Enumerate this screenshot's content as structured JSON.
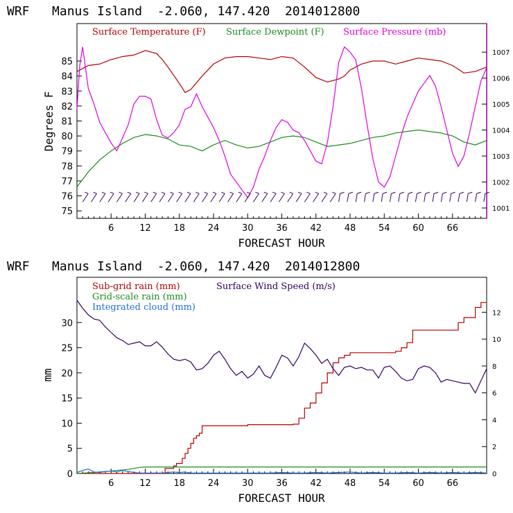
{
  "chart_data": [
    {
      "type": "line",
      "title": "WRF   Manus Island  -2.060, 147.420  2014012800",
      "xlabel": "FORECAST HOUR",
      "ylabel": "Degrees F",
      "xlim": [
        0,
        72
      ],
      "ylim": [
        74.5,
        87.5
      ],
      "y2lim": [
        1000.6,
        1008.1
      ],
      "xticks": [
        "6",
        "12",
        "18",
        "24",
        "30",
        "36",
        "42",
        "48",
        "54",
        "60",
        "66"
      ],
      "yticks": [
        "75",
        "76",
        "77",
        "78",
        "79",
        "80",
        "81",
        "82",
        "83",
        "84",
        "85"
      ],
      "y2ticks": [
        "1001",
        "1002",
        "1003",
        "1004",
        "1005",
        "1006",
        "1007"
      ],
      "legend_placement": "top",
      "wind_barbs": true,
      "series": [
        {
          "name": "Surface Temperature (F)",
          "color": "#b30000",
          "axis": "left",
          "x": [
            0,
            2,
            4,
            6,
            8,
            10,
            12,
            14,
            15,
            16,
            18,
            19,
            20,
            22,
            24,
            26,
            28,
            30,
            32,
            34,
            36,
            38,
            40,
            42,
            44,
            46,
            47,
            48,
            50,
            52,
            54,
            56,
            58,
            60,
            62,
            64,
            66,
            68,
            70,
            72
          ],
          "y": [
            84.3,
            84.7,
            84.8,
            85.1,
            85.3,
            85.4,
            85.7,
            85.5,
            85.1,
            84.6,
            83.5,
            82.9,
            83.1,
            84.0,
            84.8,
            85.2,
            85.3,
            85.3,
            85.2,
            85.1,
            85.3,
            85.2,
            84.6,
            83.9,
            83.6,
            83.8,
            84.0,
            84.4,
            84.8,
            85.0,
            85.0,
            84.8,
            85.0,
            85.2,
            85.1,
            85.0,
            84.7,
            84.2,
            84.3,
            84.6
          ]
        },
        {
          "name": "Surface Dewpoint (F)",
          "color": "#1a8a1a",
          "axis": "left",
          "x": [
            0,
            2,
            4,
            6,
            8,
            10,
            12,
            14,
            16,
            18,
            20,
            22,
            24,
            26,
            28,
            30,
            32,
            34,
            36,
            38,
            40,
            42,
            44,
            46,
            48,
            50,
            52,
            54,
            56,
            58,
            60,
            62,
            64,
            66,
            68,
            70,
            72
          ],
          "y": [
            76.6,
            77.6,
            78.4,
            79.0,
            79.5,
            79.9,
            80.1,
            80.0,
            79.8,
            79.4,
            79.3,
            79.0,
            79.4,
            79.7,
            79.4,
            79.2,
            79.3,
            79.6,
            79.9,
            80.0,
            79.9,
            79.6,
            79.3,
            79.4,
            79.5,
            79.7,
            79.9,
            80.0,
            80.2,
            80.3,
            80.4,
            80.3,
            80.2,
            80.0,
            79.6,
            79.4,
            79.7
          ]
        },
        {
          "name": "Surface Pressure (mb)",
          "color": "#e000e0",
          "axis": "right",
          "x": [
            0,
            0.5,
            1,
            1.5,
            2,
            3,
            4,
            5,
            6,
            7,
            8,
            9,
            10,
            11,
            12,
            13,
            14,
            15,
            16,
            17,
            18,
            19,
            20,
            21,
            22,
            23,
            24,
            25,
            26,
            27,
            28,
            29,
            30,
            31,
            32,
            33,
            34,
            35,
            36,
            37,
            38,
            39,
            40,
            41,
            42,
            43,
            44,
            45,
            46,
            47,
            48,
            49,
            50,
            51,
            52,
            53,
            54,
            55,
            56,
            57,
            58,
            59,
            60,
            61,
            62,
            63,
            64,
            65,
            66,
            67,
            68,
            69,
            70,
            71,
            72
          ],
          "y": [
            1004.8,
            1006.5,
            1007.2,
            1006.4,
            1005.6,
            1005.0,
            1004.3,
            1003.9,
            1003.5,
            1003.2,
            1003.7,
            1004.2,
            1005.0,
            1005.3,
            1005.3,
            1005.2,
            1004.4,
            1003.8,
            1003.7,
            1003.9,
            1004.2,
            1004.8,
            1004.9,
            1005.4,
            1004.9,
            1004.5,
            1004.1,
            1003.6,
            1003.0,
            1002.3,
            1002.0,
            1001.7,
            1001.4,
            1001.8,
            1002.5,
            1003.0,
            1003.6,
            1004.1,
            1004.4,
            1004.3,
            1004.0,
            1003.9,
            1003.6,
            1003.2,
            1002.8,
            1002.7,
            1003.5,
            1004.9,
            1006.6,
            1007.2,
            1007.0,
            1006.7,
            1005.6,
            1004.2,
            1002.9,
            1002.0,
            1001.8,
            1002.2,
            1003.0,
            1003.8,
            1004.5,
            1005.0,
            1005.5,
            1005.8,
            1006.1,
            1005.7,
            1004.9,
            1004.0,
            1003.1,
            1002.6,
            1003.0,
            1003.9,
            1004.9,
            1005.9,
            1006.4
          ]
        }
      ]
    },
    {
      "type": "line",
      "title": "WRF   Manus Island  -2.060, 147.420  2014012800",
      "xlabel": "FORECAST HOUR",
      "ylabel": "mm",
      "xlim": [
        0,
        72
      ],
      "ylim": [
        0,
        39
      ],
      "y2lim": [
        0,
        14.6
      ],
      "xticks": [
        "6",
        "12",
        "18",
        "24",
        "30",
        "36",
        "42",
        "48",
        "54",
        "60",
        "66"
      ],
      "yticks": [
        "0",
        "5",
        "10",
        "15",
        "20",
        "25",
        "30"
      ],
      "y2ticks": [
        "0",
        "2",
        "4",
        "6",
        "8",
        "10",
        "12"
      ],
      "legend_placement": "top-left",
      "series": [
        {
          "name": "Sub-grid rain (mm)",
          "color": "#b30000",
          "axis": "left",
          "x": [
            0,
            15,
            15.5,
            17,
            17.5,
            18,
            18.5,
            19,
            19.5,
            20,
            20.5,
            21,
            21.5,
            22,
            30,
            38,
            39,
            40,
            41,
            42,
            43,
            44,
            45,
            46,
            47,
            48,
            49,
            56,
            57,
            58,
            59,
            66,
            67,
            68,
            70,
            71,
            72
          ],
          "y": [
            0,
            0,
            1,
            1.5,
            2,
            2,
            3,
            4,
            5,
            6,
            7,
            7.5,
            8,
            9.5,
            9.7,
            9.8,
            11,
            13,
            14,
            16,
            18,
            20,
            22,
            23,
            23.5,
            24,
            24,
            24.3,
            25,
            26,
            28.5,
            28.5,
            30,
            31,
            33,
            34,
            34
          ],
          "step": true
        },
        {
          "name": "Surface Wind Speed (m/s)",
          "color": "#300060",
          "axis": "right",
          "x": [
            0,
            1,
            2,
            3,
            4,
            5,
            6,
            7,
            8,
            9,
            10,
            11,
            12,
            13,
            14,
            15,
            16,
            17,
            18,
            19,
            20,
            21,
            22,
            23,
            24,
            25,
            26,
            27,
            28,
            29,
            30,
            31,
            32,
            33,
            34,
            35,
            36,
            37,
            38,
            39,
            40,
            41,
            42,
            43,
            44,
            45,
            46,
            47,
            48,
            49,
            50,
            51,
            52,
            53,
            54,
            55,
            56,
            57,
            58,
            59,
            60,
            61,
            62,
            63,
            64,
            65,
            66,
            67,
            68,
            69,
            70,
            71,
            72
          ],
          "y": [
            12.9,
            12.3,
            11.8,
            11.5,
            11.4,
            10.9,
            10.5,
            10.1,
            9.9,
            9.6,
            9.7,
            9.8,
            9.5,
            9.5,
            9.8,
            9.4,
            8.9,
            8.5,
            8.4,
            8.5,
            8.3,
            7.7,
            7.8,
            8.2,
            8.8,
            9.1,
            8.5,
            7.8,
            7.3,
            7.6,
            7.1,
            7.4,
            8.0,
            7.3,
            7.1,
            7.9,
            8.8,
            8.6,
            8.0,
            8.7,
            9.7,
            9.3,
            8.8,
            8.2,
            8.5,
            7.8,
            7.3,
            7.9,
            8.0,
            7.8,
            7.9,
            7.7,
            7.7,
            7.1,
            7.9,
            8.0,
            7.6,
            7.1,
            6.9,
            7.0,
            7.8,
            8.0,
            7.9,
            7.5,
            6.8,
            7.0,
            6.9,
            6.8,
            6.7,
            6.7,
            6.0,
            6.9,
            7.8
          ]
        },
        {
          "name": "Grid-scale rain (mm)",
          "color": "#1a8a1a",
          "axis": "left",
          "x": [
            0,
            3,
            6,
            9,
            10,
            11,
            12,
            72
          ],
          "y": [
            0,
            0.2,
            0.5,
            0.8,
            1.0,
            1.2,
            1.3,
            1.3
          ]
        },
        {
          "name": "Integrated cloud (mm)",
          "color": "#1e6ed8",
          "axis": "left",
          "x": [
            0,
            1,
            2,
            3,
            4,
            5,
            6,
            7,
            8,
            9,
            10,
            11,
            12,
            13,
            14,
            15,
            16,
            17,
            18,
            19,
            20,
            21,
            22,
            24,
            26,
            28,
            30,
            32,
            34,
            36,
            38,
            40,
            42,
            44,
            46,
            48,
            50,
            52,
            54,
            56,
            58,
            60,
            62,
            64,
            66,
            68,
            70,
            72
          ],
          "y": [
            0.2,
            0.6,
            0.9,
            0.3,
            0.2,
            0.4,
            0.5,
            0.3,
            0.6,
            0.4,
            0.2,
            0.1,
            0.1,
            0.1,
            0.1,
            0.1,
            0.2,
            0.3,
            0.2,
            0.3,
            0.1,
            0.1,
            0.1,
            0.1,
            0.1,
            0.1,
            0.1,
            0.1,
            0.1,
            0.2,
            0.1,
            0.1,
            0.2,
            0.1,
            0.2,
            0.3,
            0.1,
            0.2,
            0.1,
            0.1,
            0.2,
            0.1,
            0.2,
            0.1,
            0.2,
            0.1,
            0.2,
            0.1
          ]
        }
      ]
    }
  ]
}
